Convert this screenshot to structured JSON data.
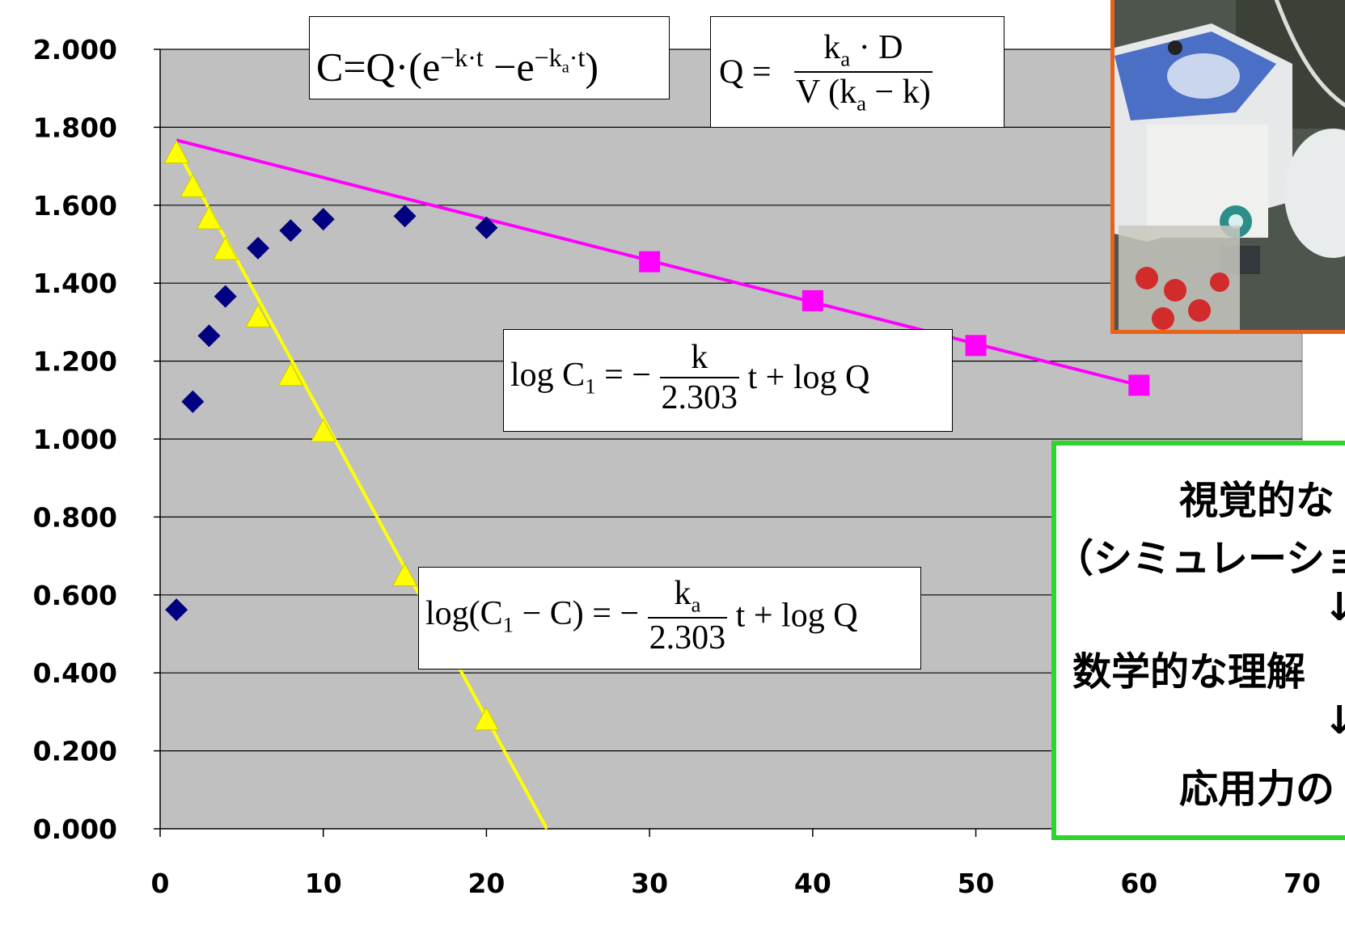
{
  "chart_data": {
    "type": "scatter",
    "title": "",
    "xlabel": "",
    "ylabel": "",
    "xlim": [
      0,
      70
    ],
    "ylim": [
      0,
      2
    ],
    "grid": "horizontal",
    "y_ticks": [
      "0.000",
      "0.200",
      "0.400",
      "0.600",
      "0.800",
      "1.000",
      "1.200",
      "1.400",
      "1.600",
      "1.800",
      "2.000"
    ],
    "x_ticks": [
      "0",
      "10",
      "20",
      "30",
      "40",
      "50",
      "60",
      "70"
    ],
    "series": [
      {
        "marker": "diamond",
        "color": "#000080",
        "x": [
          1,
          2,
          3,
          4,
          6,
          8,
          10,
          15,
          20
        ],
        "y": [
          0.562,
          1.096,
          1.265,
          1.366,
          1.49,
          1.535,
          1.564,
          1.572,
          1.542
        ]
      },
      {
        "marker": "triangle",
        "color": "#ffff00",
        "x": [
          1,
          2,
          3,
          4,
          6,
          8,
          10,
          15,
          20
        ],
        "y": [
          1.735,
          1.648,
          1.566,
          1.487,
          1.314,
          1.164,
          1.02,
          0.65,
          0.28
        ],
        "fit_line": {
          "x": [
            1,
            23.7
          ],
          "y": [
            1.745,
            0.0
          ],
          "color": "#ffff00"
        }
      },
      {
        "marker": "square",
        "color": "#ff00ff",
        "x": [
          30,
          40,
          50,
          60
        ],
        "y": [
          1.455,
          1.355,
          1.24,
          1.138
        ],
        "fit_line": {
          "x": [
            1,
            60
          ],
          "y": [
            1.767,
            1.138
          ],
          "color": "#ff00ff"
        }
      }
    ]
  },
  "equations": {
    "eq1": {
      "lhs": "C=Q·(e",
      "sup1": "−k·t",
      "mid": " −e",
      "sup2": "−k",
      "sup2_sub": "a",
      "sup2_tail": "·t",
      "close": ")"
    },
    "eq2": {
      "lhs": "Q  =",
      "num": "k",
      "num_sub": "a",
      "num_tail": " · D",
      "den": "V",
      "den_paren_open": "(",
      "den_k": "k",
      "den_sub": "a",
      "den_tail": " − k",
      "den_paren_close": ")"
    },
    "eq3": {
      "lhs": "log C",
      "lhs_sub": "1",
      "eq": " = −",
      "num": "k",
      "den": "2.303",
      "rhs": " t + log Q"
    },
    "eq4": {
      "lhs": "log(C",
      "lhs_sub": "1",
      "lhs_tail": " − C) = −",
      "num": "k",
      "num_sub": "a",
      "den": "2.303",
      "rhs": " t + log Q"
    }
  },
  "photo": {
    "icon": "lab-equipment-photo"
  },
  "callout": {
    "line1": "視覚的な",
    "line2": "（シミュレーション",
    "arrow1": "↓",
    "line3": "数学的な理解",
    "arrow2": "↓",
    "line4": "応用力の"
  }
}
